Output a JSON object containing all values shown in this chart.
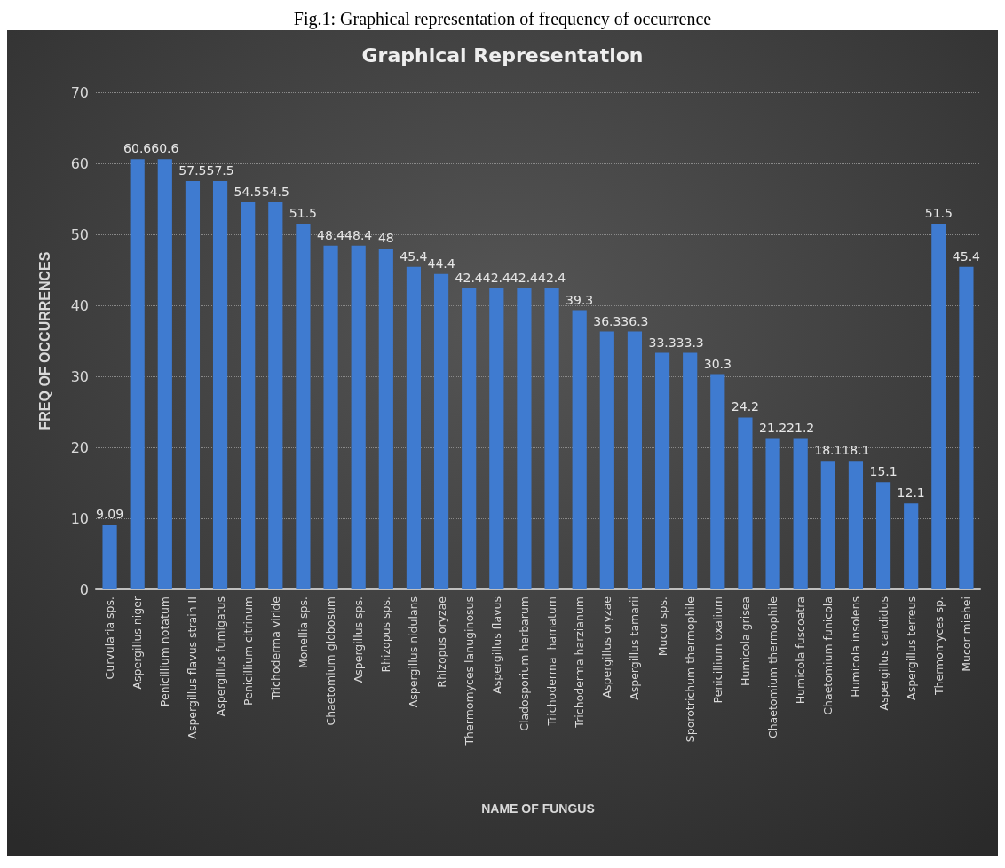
{
  "chart_data": {
    "type": "bar",
    "title": "Graphical Representation",
    "xlabel": "NAME OF FUNGUS",
    "ylabel": "FREQ OF OCCURRENCES",
    "annotations": [
      "Fig.1: Graphical representation of frequency of occurrence"
    ],
    "categories": [
      "Curvularia sps.",
      "Aspergillus niger",
      "Penicillium notatum",
      "Aspergillus flavus strain II",
      "Aspergillus fumigatus",
      "Penicillium citrinum",
      "Trichoderma viride",
      "Monellia sps.",
      "Chaetomium globosum",
      "Aspergillus sps.",
      "Rhizopus sps.",
      "Aspergillus nidulans",
      "Rhizopus oryzae",
      "Thermomyces lanuginosus",
      "Aspergillus flavus",
      "Cladosporium herbarum",
      "Trichoderma  hamatum",
      "Trichoderma harzianum",
      "Aspergillus oryzae",
      "Aspergillus tamarii",
      "Mucor sps.",
      "Sporotrichum thermophile",
      "Penicillium oxalium",
      "Humicola grisea",
      "Chaetomium thermophile",
      "Humicola fuscoatra",
      "Chaetomium funicola",
      "Humicola insolens",
      "Aspergillus candidus",
      "Aspergillus terreus",
      "Thermomyces sp.",
      "Mucor miehei"
    ],
    "values": [
      9.09,
      60.6,
      60.6,
      57.5,
      57.5,
      54.5,
      54.5,
      51.5,
      48.4,
      48.4,
      48,
      45.4,
      44.4,
      42.4,
      42.4,
      42.4,
      42.4,
      39.3,
      36.3,
      36.3,
      33.3,
      33.3,
      30.3,
      24.2,
      21.2,
      21.2,
      18.1,
      18.1,
      15.1,
      12.1,
      51.5,
      45.4
    ],
    "color": "#3f7bd0",
    "ylim": [
      0,
      70
    ],
    "yticks": [
      0,
      10,
      20,
      30,
      40,
      50,
      60,
      70
    ],
    "grid": "y",
    "data_labels": true
  }
}
